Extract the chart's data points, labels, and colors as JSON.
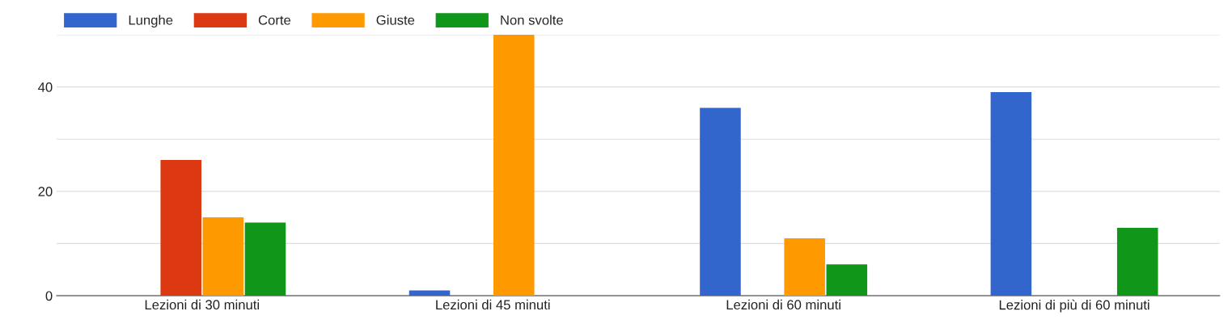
{
  "chart_data": {
    "type": "bar",
    "categories": [
      "Lezioni di 30 minuti",
      "Lezioni di 45 minuti",
      "Lezioni di 60 minuti",
      "Lezioni di più di 60 minuti"
    ],
    "series": [
      {
        "name": "Lunghe",
        "color": "#3366cc",
        "values": [
          null,
          1,
          36,
          39
        ]
      },
      {
        "name": "Corte",
        "color": "#dc3912",
        "values": [
          26,
          null,
          null,
          null
        ]
      },
      {
        "name": "Giuste",
        "color": "#ff9900",
        "values": [
          15,
          50,
          11,
          null
        ]
      },
      {
        "name": "Non svolte",
        "color": "#109618",
        "values": [
          14,
          null,
          6,
          13
        ]
      }
    ],
    "ylim": [
      0,
      50
    ],
    "yticks": [
      0,
      {
        "value": 10,
        "label": null
      },
      20,
      {
        "value": 30,
        "label": null
      },
      40,
      {
        "value": 50,
        "label": null
      }
    ],
    "grid": "y",
    "legend": "top left"
  }
}
